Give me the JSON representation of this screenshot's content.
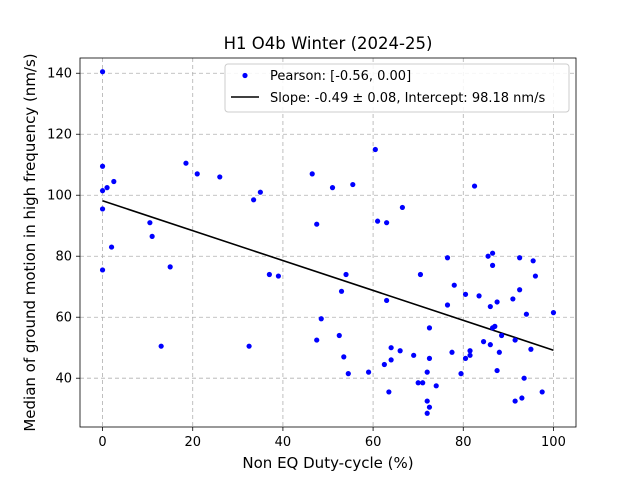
{
  "chart_data": {
    "type": "scatter",
    "title": "H1 O4b Winter (2024-25)",
    "xlabel": "Non EQ Duty-cycle (%)",
    "ylabel": "Median of ground motion in high frequency (nm/s)",
    "xlim": [
      -5,
      105
    ],
    "ylim": [
      24,
      145
    ],
    "xticks": [
      0,
      20,
      40,
      60,
      80,
      100
    ],
    "yticks": [
      40,
      60,
      80,
      100,
      120,
      140
    ],
    "grid": true,
    "legend_position": "top-right",
    "series": [
      {
        "name": "Pearson: [-0.56, 0.00]",
        "kind": "points",
        "color": "#0000ff",
        "points": [
          [
            0,
            140.5
          ],
          [
            0,
            109.5
          ],
          [
            0,
            101.5
          ],
          [
            0,
            95.5
          ],
          [
            0,
            75.5
          ],
          [
            1,
            102.5
          ],
          [
            2,
            83
          ],
          [
            2.5,
            104.5
          ],
          [
            10.5,
            91
          ],
          [
            11,
            86.5
          ],
          [
            13,
            50.5
          ],
          [
            15,
            76.5
          ],
          [
            18.5,
            110.5
          ],
          [
            21,
            107
          ],
          [
            26,
            106
          ],
          [
            32.5,
            50.5
          ],
          [
            33.5,
            98.5
          ],
          [
            35,
            101
          ],
          [
            37,
            74
          ],
          [
            39,
            73.5
          ],
          [
            46.5,
            107
          ],
          [
            47.5,
            52.5
          ],
          [
            47.5,
            90.5
          ],
          [
            48.5,
            59.5
          ],
          [
            51,
            102.5
          ],
          [
            52.5,
            54
          ],
          [
            53,
            68.5
          ],
          [
            53.5,
            47
          ],
          [
            54,
            74
          ],
          [
            54.5,
            41.5
          ],
          [
            55.5,
            103.5
          ],
          [
            59,
            42
          ],
          [
            60.5,
            115
          ],
          [
            61,
            91.5
          ],
          [
            62.5,
            44.5
          ],
          [
            63,
            91
          ],
          [
            63,
            65.5
          ],
          [
            63.5,
            35.5
          ],
          [
            64,
            50
          ],
          [
            64,
            46
          ],
          [
            66,
            49
          ],
          [
            66.5,
            96
          ],
          [
            69,
            47.5
          ],
          [
            70,
            38.5
          ],
          [
            70.5,
            74
          ],
          [
            71,
            38.5
          ],
          [
            72,
            42
          ],
          [
            72,
            32.5
          ],
          [
            72,
            28.5
          ],
          [
            72.5,
            30.5
          ],
          [
            72.5,
            56.5
          ],
          [
            72.5,
            46.5
          ],
          [
            74,
            37.5
          ],
          [
            76.5,
            79.5
          ],
          [
            76.5,
            64
          ],
          [
            77.5,
            48.5
          ],
          [
            78,
            70.5
          ],
          [
            79.5,
            41.5
          ],
          [
            80.5,
            46.5
          ],
          [
            80.5,
            67.5
          ],
          [
            81.5,
            49
          ],
          [
            81.5,
            47.5
          ],
          [
            82.5,
            103
          ],
          [
            83.5,
            67
          ],
          [
            84.5,
            52
          ],
          [
            85.5,
            80
          ],
          [
            86,
            51
          ],
          [
            86,
            63.5
          ],
          [
            86.5,
            81
          ],
          [
            86.5,
            77
          ],
          [
            86.5,
            56.5
          ],
          [
            87,
            57
          ],
          [
            87.5,
            65
          ],
          [
            87.5,
            42.5
          ],
          [
            88,
            48.5
          ],
          [
            88.5,
            54
          ],
          [
            91,
            66
          ],
          [
            91.5,
            32.5
          ],
          [
            91.5,
            52.5
          ],
          [
            92.5,
            79.5
          ],
          [
            92.5,
            69
          ],
          [
            93,
            33.5
          ],
          [
            93.5,
            40
          ],
          [
            94,
            61
          ],
          [
            95,
            49.5
          ],
          [
            95.5,
            78.5
          ],
          [
            96,
            73.5
          ],
          [
            97.5,
            35.5
          ],
          [
            100,
            61.5
          ]
        ]
      },
      {
        "name": "Slope: -0.49 ± 0.08, Intercept: 98.18 nm/s",
        "kind": "line",
        "color": "#000000",
        "slope": -0.49,
        "intercept": 98.18,
        "x_range": [
          0,
          100
        ]
      }
    ]
  }
}
